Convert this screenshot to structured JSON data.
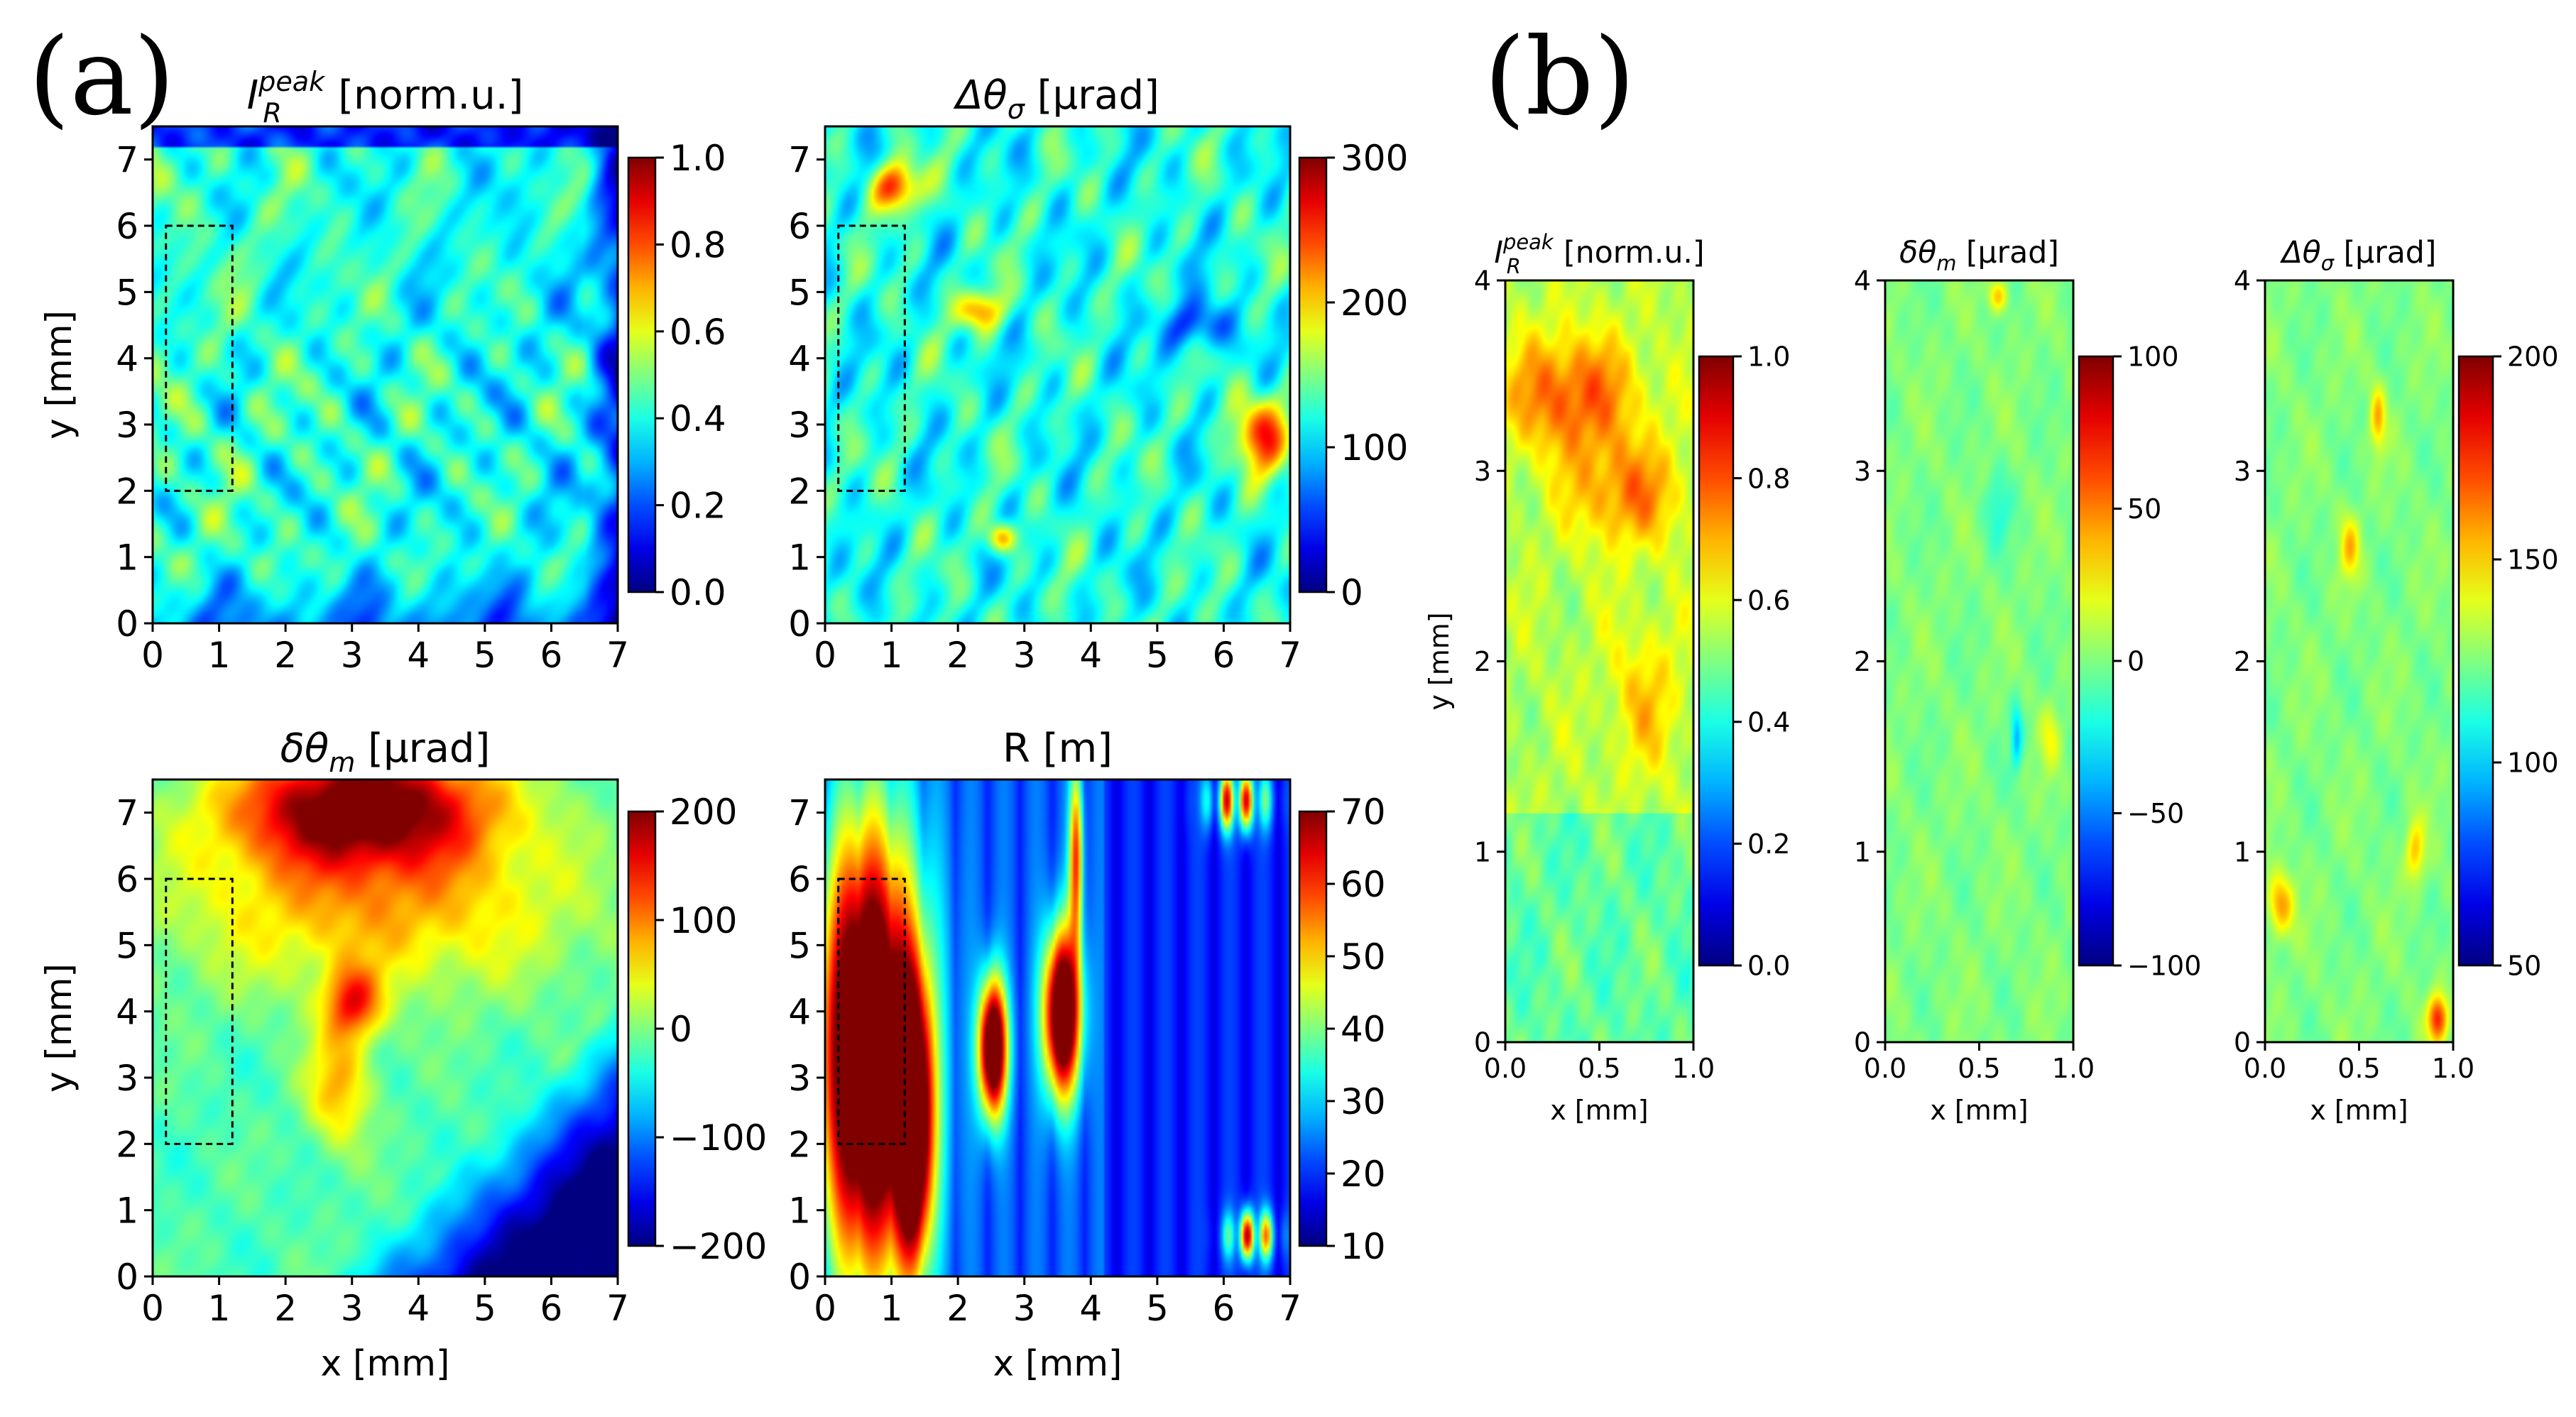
{
  "figure": {
    "panel_a_label": "(a)",
    "panel_b_label": "(b)"
  },
  "chart_data": [
    {
      "id": "a1",
      "type": "heatmap",
      "title": "I_R^peak [norm.u.]",
      "title_parts": {
        "base": "I",
        "sub": "R",
        "sup": "peak",
        "unit": " [norm.u.]"
      },
      "xlabel": "",
      "ylabel": "y [mm]",
      "xlim": [
        0,
        7
      ],
      "ylim": [
        0,
        7.5
      ],
      "xticks": [
        "0",
        "1",
        "2",
        "3",
        "4",
        "5",
        "6",
        "7"
      ],
      "yticks": [
        "0",
        "1",
        "2",
        "3",
        "4",
        "5",
        "6",
        "7"
      ],
      "colorbar": {
        "min": 0.0,
        "max": 1.0,
        "ticks": [
          "0.0",
          "0.2",
          "0.4",
          "0.6",
          "0.8",
          "1.0"
        ],
        "colormap": "jet"
      },
      "rect": {
        "x0": 0.2,
        "x1": 1.2,
        "y0": 2,
        "y1": 6
      },
      "field": "intensity"
    },
    {
      "id": "a2",
      "type": "heatmap",
      "title": "Δθσ [μrad]",
      "title_parts": {
        "base": "Δθ",
        "sub": "σ",
        "unit": " [μrad]"
      },
      "xlabel": "",
      "ylabel": "",
      "xlim": [
        0,
        7
      ],
      "ylim": [
        0,
        7.5
      ],
      "xticks": [
        "0",
        "1",
        "2",
        "3",
        "4",
        "5",
        "6",
        "7"
      ],
      "yticks": [
        "0",
        "1",
        "2",
        "3",
        "4",
        "5",
        "6",
        "7"
      ],
      "colorbar": {
        "min": 0,
        "max": 300,
        "ticks": [
          "0",
          "100",
          "200",
          "300"
        ],
        "colormap": "jet"
      },
      "rect": {
        "x0": 0.2,
        "x1": 1.2,
        "y0": 2,
        "y1": 6
      },
      "field": "width"
    },
    {
      "id": "a3",
      "type": "heatmap",
      "title": "δθm [μrad]",
      "title_parts": {
        "base": "δθ",
        "sub": "m",
        "unit": " [μrad]"
      },
      "xlabel": "x [mm]",
      "ylabel": "y [mm]",
      "xlim": [
        0,
        7
      ],
      "ylim": [
        0,
        7.5
      ],
      "xticks": [
        "0",
        "1",
        "2",
        "3",
        "4",
        "5",
        "6",
        "7"
      ],
      "yticks": [
        "0",
        "1",
        "2",
        "3",
        "4",
        "5",
        "6",
        "7"
      ],
      "colorbar": {
        "min": -200,
        "max": 200,
        "ticks": [
          "−200",
          "−100",
          "0",
          "100",
          "200"
        ],
        "colormap": "jet"
      },
      "rect": {
        "x0": 0.2,
        "x1": 1.2,
        "y0": 2,
        "y1": 6
      },
      "field": "shift"
    },
    {
      "id": "a4",
      "type": "heatmap",
      "title": "R [m]",
      "title_parts": {
        "base": "R [m]"
      },
      "xlabel": "x [mm]",
      "ylabel": "",
      "xlim": [
        0,
        7
      ],
      "ylim": [
        0,
        7.5
      ],
      "xticks": [
        "0",
        "1",
        "2",
        "3",
        "4",
        "5",
        "6",
        "7"
      ],
      "yticks": [
        "0",
        "1",
        "2",
        "3",
        "4",
        "5",
        "6",
        "7"
      ],
      "colorbar": {
        "min": 10,
        "max": 70,
        "ticks": [
          "10",
          "20",
          "30",
          "40",
          "50",
          "60",
          "70"
        ],
        "colormap": "jet"
      },
      "rect": {
        "x0": 0.2,
        "x1": 1.2,
        "y0": 2,
        "y1": 6
      },
      "field": "radius"
    },
    {
      "id": "b1",
      "type": "heatmap",
      "title": "I_R^peak [norm.u.]",
      "title_parts": {
        "base": "I",
        "sub": "R",
        "sup": "peak",
        "unit": " [norm.u.]"
      },
      "xlabel": "x [mm]",
      "ylabel": "y [mm]",
      "xlim": [
        0,
        1
      ],
      "ylim": [
        0,
        4
      ],
      "xticks": [
        "0.0",
        "0.5",
        "1.0"
      ],
      "yticks": [
        "0",
        "1",
        "2",
        "3",
        "4"
      ],
      "colorbar": {
        "min": 0.0,
        "max": 1.0,
        "ticks": [
          "0.0",
          "0.2",
          "0.4",
          "0.6",
          "0.8",
          "1.0"
        ],
        "colormap": "jet"
      },
      "field": "zoom_intensity"
    },
    {
      "id": "b2",
      "type": "heatmap",
      "title": "δθm [μrad]",
      "title_parts": {
        "base": "δθ",
        "sub": "m",
        "unit": " [μrad]"
      },
      "xlabel": "x [mm]",
      "ylabel": "",
      "xlim": [
        0,
        1
      ],
      "ylim": [
        0,
        4
      ],
      "xticks": [
        "0.0",
        "0.5",
        "1.0"
      ],
      "yticks": [
        "0",
        "1",
        "2",
        "3",
        "4"
      ],
      "colorbar": {
        "min": -100,
        "max": 100,
        "ticks": [
          "−100",
          "−50",
          "0",
          "50",
          "100"
        ],
        "colormap": "jet"
      },
      "field": "zoom_shift"
    },
    {
      "id": "b3",
      "type": "heatmap",
      "title": "Δθσ [μrad]",
      "title_parts": {
        "base": "Δθ",
        "sub": "σ",
        "unit": " [μrad]"
      },
      "xlabel": "x [mm]",
      "ylabel": "",
      "xlim": [
        0,
        1
      ],
      "ylim": [
        0,
        4
      ],
      "xticks": [
        "0.0",
        "0.5",
        "1.0"
      ],
      "yticks": [
        "0",
        "1",
        "2",
        "3",
        "4"
      ],
      "colorbar": {
        "min": 50,
        "max": 200,
        "ticks": [
          "50",
          "100",
          "150",
          "200"
        ],
        "colormap": "jet"
      },
      "field": "zoom_width"
    }
  ]
}
